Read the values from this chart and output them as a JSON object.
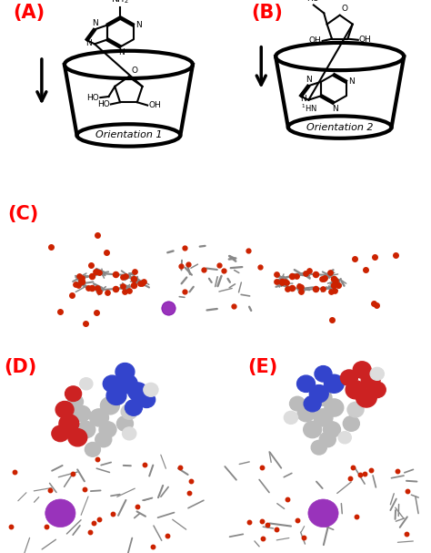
{
  "panel_labels": [
    "(A)",
    "(B)",
    "(C)",
    "(D)",
    "(E)"
  ],
  "panel_label_color": "#FF0000",
  "panel_label_fontsize": 15,
  "orientation1_text": "Orientation 1",
  "orientation2_text": "Orientation 2",
  "background_color": "#FFFFFF",
  "fig_width": 4.74,
  "fig_height": 6.07,
  "line_color": "#000000",
  "molecular_gray": "#AAAAAA",
  "molecular_dark_gray": "#888888",
  "molecular_red": "#CC2200",
  "molecular_blue": "#2222BB",
  "molecular_purple": "#9933BB",
  "molecular_white": "#DDDDDD",
  "lw_cup": 3.0,
  "lw_mol": 1.5
}
